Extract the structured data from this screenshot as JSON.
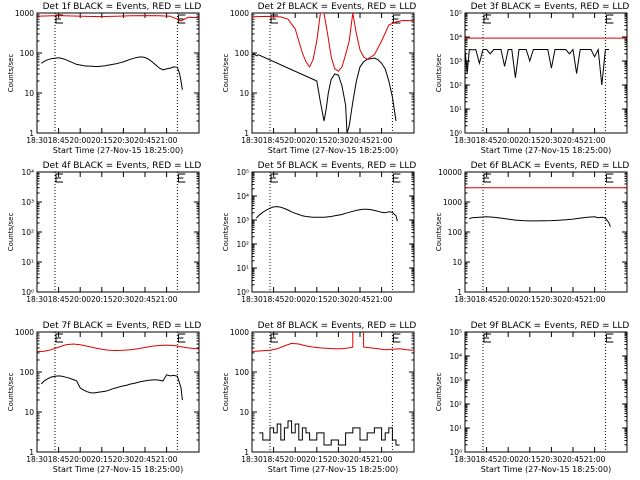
{
  "colors": {
    "events": "#000000",
    "lld": "#e00000",
    "background": "#ffffff"
  },
  "chart_data": [
    {
      "type": "line",
      "title": "Det 1f BLACK = Events, RED = LLD",
      "ylabel": "Counts/sec",
      "xlabel": "Start Time (27-Nov-15 18:25:00)",
      "ylog": true,
      "ylim": [
        1,
        1000
      ],
      "yticks": [
        "1",
        "10",
        "100",
        "1000"
      ],
      "xticks": [
        "18:30",
        "18:45",
        "20:00",
        "20:15",
        "20:30",
        "20:45",
        "21:00"
      ],
      "markers": [
        "18:45",
        "20:45"
      ],
      "series": [
        {
          "color": "#000000",
          "x": [
            0.06,
            0.1,
            0.15,
            0.2,
            0.25,
            0.3,
            0.35,
            0.4,
            0.45,
            0.5,
            0.55,
            0.6,
            0.65,
            0.7,
            0.75,
            0.8,
            0.85,
            0.9,
            0.95,
            1.0,
            1.05,
            1.1,
            1.15,
            1.2,
            1.25,
            1.3,
            1.35,
            1.4,
            1.45,
            1.5,
            1.55,
            1.6,
            1.65,
            1.7,
            1.75,
            1.8,
            1.85,
            1.9,
            1.95,
            1.98,
            2.0,
            2.02
          ],
          "y": [
            55,
            62,
            68,
            72,
            74,
            76,
            73,
            68,
            62,
            57,
            52,
            50,
            48,
            47,
            47,
            46,
            46,
            47,
            48,
            50,
            52,
            54,
            57,
            60,
            65,
            70,
            74,
            78,
            80,
            77,
            70,
            60,
            50,
            42,
            38,
            40,
            42,
            45,
            44,
            30,
            20,
            12
          ]
        },
        {
          "color": "#e00000",
          "x": [
            -0.05,
            0.1,
            0.3,
            0.5,
            0.7,
            0.9,
            1.0,
            1.1,
            1.3,
            1.5,
            1.7,
            1.85,
            1.95,
            2.0,
            2.05,
            2.1,
            2.3,
            2.5
          ],
          "y": [
            820,
            840,
            860,
            840,
            820,
            815,
            820,
            830,
            850,
            860,
            850,
            830,
            700,
            630,
            700,
            780,
            760,
            770
          ]
        }
      ]
    },
    {
      "type": "line",
      "title": "Det 2f BLACK = Events, RED = LLD",
      "ylabel": "Counts/sec",
      "xlabel": "Start Time (27-Nov-15 18:25:00)",
      "ylog": true,
      "ylim": [
        1,
        1000
      ],
      "yticks": [
        "1",
        "10",
        "100",
        "1000"
      ],
      "xticks": [
        "18:30",
        "18:45",
        "20:00",
        "20:15",
        "20:30",
        "20:45",
        "21:00"
      ],
      "markers": [
        "18:45",
        "20:45"
      ],
      "series": [
        {
          "color": "#000000",
          "x": [
            0.0,
            0.03,
            0.06,
            0.09,
            0.9,
            0.95,
            1.0,
            1.03,
            1.06,
            1.1,
            1.15,
            1.2,
            1.25,
            1.3,
            1.32,
            1.35,
            1.4,
            1.45,
            1.5,
            1.55,
            1.6,
            1.65,
            1.7,
            1.75,
            1.8,
            1.85,
            1.9,
            1.95,
            2.0
          ],
          "y": [
            90,
            95,
            85,
            90,
            20,
            6,
            2,
            4,
            10,
            22,
            30,
            28,
            15,
            5,
            1,
            1.5,
            6,
            20,
            45,
            60,
            70,
            72,
            75,
            68,
            55,
            40,
            20,
            8,
            2
          ]
        },
        {
          "color": "#e00000",
          "x": [
            -0.05,
            0.2,
            0.4,
            0.5,
            0.6,
            0.65,
            0.7,
            0.75,
            0.8,
            0.85,
            0.9,
            0.95,
            1.0,
            1.05,
            1.1,
            1.15,
            1.2,
            1.25,
            1.3,
            1.35,
            1.4,
            1.45,
            1.5,
            1.55,
            1.6,
            1.7,
            1.8,
            1.9,
            2.0,
            2.1,
            2.3,
            2.5
          ],
          "y": [
            800,
            820,
            800,
            700,
            400,
            200,
            100,
            60,
            45,
            70,
            200,
            1000,
            1000,
            300,
            80,
            40,
            35,
            45,
            90,
            200,
            1000,
            300,
            120,
            80,
            70,
            90,
            200,
            500,
            600,
            650,
            640,
            630
          ]
        }
      ]
    },
    {
      "type": "line",
      "title": "Det 3f BLACK = Events, RED = LLD",
      "ylabel": "Counts/sec",
      "xlabel": "Start Time (27-Nov-15 18:25:00)",
      "ylog": true,
      "ylim": [
        1,
        100000
      ],
      "yticks": [
        "10⁰",
        "10¹",
        "10²",
        "10³",
        "10⁴",
        "10⁵"
      ],
      "xticks": [
        "18:30",
        "18:45",
        "20:00",
        "20:15",
        "20:30",
        "20:45",
        "21:00"
      ],
      "markers": [
        "18:45",
        "20:45"
      ],
      "series": [
        {
          "color": "#000000",
          "x": [
            0.0,
            0.03,
            0.06,
            0.1,
            0.15,
            0.2,
            0.25,
            0.3,
            0.35,
            0.4,
            0.45,
            0.5,
            0.55,
            0.6,
            0.65,
            0.7,
            0.75,
            0.8,
            0.85,
            0.9,
            0.95,
            1.0,
            1.05,
            1.1,
            1.15,
            1.2,
            1.25,
            1.3,
            1.35,
            1.4,
            1.45,
            1.5,
            1.55,
            1.6,
            1.65,
            1.7,
            1.75,
            1.8,
            1.85,
            1.9,
            1.95,
            2.0
          ],
          "y": [
            3000,
            300,
            3000,
            2900,
            3000,
            800,
            3000,
            3000,
            2000,
            3000,
            3000,
            3000,
            600,
            3000,
            3000,
            200,
            3000,
            3000,
            3000,
            1000,
            3000,
            3000,
            3000,
            3000,
            3000,
            500,
            3000,
            3000,
            3000,
            3000,
            2000,
            3000,
            300,
            3000,
            3000,
            3000,
            3000,
            1500,
            3000,
            100,
            3000,
            3000
          ]
        },
        {
          "color": "#e00000",
          "x": [
            -0.05,
            0.5,
            1.0,
            1.5,
            2.0,
            2.5
          ],
          "y": [
            9000,
            9000,
            9000,
            9000,
            9000,
            9000
          ]
        }
      ]
    },
    {
      "type": "line",
      "title": "Det 4f BLACK = Events, RED = LLD",
      "ylabel": "Counts/sec",
      "xlabel": "",
      "ylog": true,
      "ylim": [
        1,
        10000
      ],
      "yticks": [
        "10⁰",
        "10¹",
        "10²",
        "10³",
        "10⁴"
      ],
      "xticks": [
        "18:30",
        "18:45",
        "20:00",
        "20:15",
        "20:30",
        "20:45",
        "21:00"
      ],
      "markers": [
        "18:45",
        "20:45"
      ],
      "series": []
    },
    {
      "type": "line",
      "title": "Det 5f BLACK = Events, RED = LLD",
      "ylabel": "Counts/sec",
      "xlabel": "",
      "ylog": true,
      "ylim": [
        1,
        100000
      ],
      "yticks": [
        "10⁰",
        "10¹",
        "10²",
        "10³",
        "10⁴",
        "10⁵"
      ],
      "xticks": [
        "18:30",
        "18:45",
        "20:00",
        "20:15",
        "20:30",
        "20:45",
        "21:00"
      ],
      "markers": [
        "18:45",
        "20:45"
      ],
      "series": [
        {
          "color": "#000000",
          "x": [
            0.06,
            0.1,
            0.15,
            0.2,
            0.25,
            0.3,
            0.35,
            0.4,
            0.45,
            0.5,
            0.55,
            0.6,
            0.65,
            0.7,
            0.75,
            0.8,
            0.85,
            0.9,
            0.95,
            1.0,
            1.05,
            1.1,
            1.15,
            1.2,
            1.25,
            1.3,
            1.35,
            1.4,
            1.45,
            1.5,
            1.55,
            1.6,
            1.65,
            1.7,
            1.75,
            1.8,
            1.85,
            1.9,
            1.95,
            2.0,
            2.02
          ],
          "y": [
            1200,
            1600,
            2100,
            2600,
            3100,
            3500,
            3600,
            3400,
            3000,
            2600,
            2200,
            1900,
            1700,
            1500,
            1400,
            1350,
            1300,
            1300,
            1300,
            1300,
            1350,
            1400,
            1500,
            1600,
            1700,
            1900,
            2100,
            2300,
            2500,
            2700,
            2800,
            2800,
            2700,
            2500,
            2300,
            2100,
            2000,
            2200,
            2100,
            1500,
            900
          ]
        }
      ]
    },
    {
      "type": "line",
      "title": "Det 6f BLACK = Events, RED = LLD",
      "ylabel": "Counts/sec",
      "xlabel": "",
      "ylog": true,
      "ylim": [
        1,
        10000
      ],
      "yticks": [
        "1",
        "10",
        "100",
        "1000",
        "10000"
      ],
      "xticks": [
        "18:30",
        "18:45",
        "20:00",
        "20:15",
        "20:30",
        "20:45",
        "21:00"
      ],
      "markers": [
        "18:45",
        "20:45"
      ],
      "series": [
        {
          "color": "#000000",
          "x": [
            0.06,
            0.1,
            0.2,
            0.3,
            0.4,
            0.5,
            0.6,
            0.7,
            0.8,
            0.9,
            1.0,
            1.1,
            1.2,
            1.3,
            1.4,
            1.5,
            1.6,
            1.7,
            1.8,
            1.85,
            1.9,
            1.95,
            2.0,
            2.02
          ],
          "y": [
            280,
            300,
            310,
            320,
            310,
            290,
            270,
            250,
            240,
            235,
            235,
            238,
            240,
            245,
            255,
            270,
            290,
            310,
            320,
            300,
            310,
            290,
            200,
            150
          ]
        },
        {
          "color": "#e00000",
          "x": [
            -0.05,
            0.5,
            1.0,
            1.5,
            2.0,
            2.5
          ],
          "y": [
            3000,
            3000,
            3000,
            3000,
            3000,
            3000
          ]
        }
      ]
    },
    {
      "type": "line",
      "title": "Det 7f BLACK = Events, RED = LLD",
      "ylabel": "Counts/sec",
      "xlabel": "Start Time (27-Nov-15 18:25:00)",
      "ylog": true,
      "ylim": [
        1,
        1000
      ],
      "yticks": [
        "1",
        "10",
        "100",
        "1000"
      ],
      "xticks": [
        "18:30",
        "18:45",
        "20:00",
        "20:15",
        "20:30",
        "20:45",
        "21:00"
      ],
      "markers": [
        "18:45",
        "20:45"
      ],
      "series": [
        {
          "color": "#000000",
          "x": [
            0.06,
            0.1,
            0.15,
            0.2,
            0.25,
            0.3,
            0.35,
            0.4,
            0.45,
            0.5,
            0.55,
            0.6,
            0.65,
            0.7,
            0.75,
            0.8,
            0.85,
            0.9,
            0.95,
            1.0,
            1.05,
            1.1,
            1.15,
            1.2,
            1.25,
            1.3,
            1.35,
            1.4,
            1.45,
            1.5,
            1.55,
            1.6,
            1.65,
            1.7,
            1.75,
            1.8,
            1.85,
            1.9,
            1.95,
            2.0,
            2.02
          ],
          "y": [
            50,
            60,
            68,
            75,
            78,
            80,
            78,
            74,
            70,
            65,
            60,
            40,
            35,
            32,
            30,
            30,
            31,
            32,
            33,
            35,
            38,
            40,
            43,
            45,
            47,
            50,
            52,
            55,
            58,
            60,
            62,
            63,
            64,
            62,
            60,
            85,
            80,
            82,
            78,
            40,
            20
          ]
        },
        {
          "color": "#e00000",
          "x": [
            -0.05,
            0.1,
            0.2,
            0.3,
            0.4,
            0.5,
            0.6,
            0.7,
            0.8,
            0.9,
            1.0,
            1.1,
            1.2,
            1.3,
            1.4,
            1.5,
            1.6,
            1.7,
            1.8,
            1.9,
            2.0,
            2.1,
            2.3,
            2.5
          ],
          "y": [
            320,
            330,
            360,
            420,
            480,
            500,
            480,
            440,
            400,
            370,
            350,
            345,
            350,
            360,
            380,
            410,
            440,
            460,
            470,
            460,
            430,
            400,
            370,
            340
          ]
        }
      ]
    },
    {
      "type": "line",
      "title": "Det 8f BLACK = Events, RED = LLD",
      "ylabel": "Counts/sec",
      "xlabel": "Start Time (27-Nov-15 18:25:00)",
      "ylog": true,
      "ylim": [
        1,
        1000
      ],
      "yticks": [
        "1",
        "10",
        "100",
        "1000"
      ],
      "xticks": [
        "18:30",
        "18:45",
        "20:00",
        "20:15",
        "20:30",
        "20:45",
        "21:00"
      ],
      "markers": [
        "18:45",
        "20:45"
      ],
      "series": [
        {
          "color": "#000000",
          "x": [
            0.1,
            0.15,
            0.15,
            0.25,
            0.25,
            0.3,
            0.3,
            0.35,
            0.35,
            0.4,
            0.4,
            0.45,
            0.45,
            0.5,
            0.5,
            0.55,
            0.55,
            0.6,
            0.6,
            0.65,
            0.65,
            0.7,
            0.7,
            0.75,
            0.75,
            0.8,
            0.8,
            0.9,
            0.9,
            1.0,
            1.0,
            1.1,
            1.1,
            1.2,
            1.2,
            1.3,
            1.3,
            1.4,
            1.4,
            1.5,
            1.5,
            1.6,
            1.6,
            1.7,
            1.7,
            1.8,
            1.8,
            1.85,
            1.85,
            1.9,
            1.9,
            1.95,
            1.95,
            2.0,
            2.0,
            2.05
          ],
          "y": [
            3,
            3,
            2,
            2,
            4,
            4,
            3,
            3,
            5,
            5,
            2,
            2,
            4,
            4,
            6,
            6,
            3,
            3,
            5,
            5,
            2,
            2,
            4,
            4,
            3,
            3,
            2,
            2,
            3,
            3,
            1.5,
            1.5,
            2,
            2,
            1.5,
            1.5,
            3,
            3,
            4,
            4,
            2,
            2,
            3,
            3,
            4,
            4,
            2,
            2,
            3,
            3,
            4,
            4,
            2,
            2,
            1.5,
            1.5
          ]
        },
        {
          "color": "#e00000",
          "x": [
            -0.05,
            0.05,
            0.15,
            0.25,
            0.35,
            0.45,
            0.55,
            0.65,
            0.75,
            0.85,
            0.95,
            1.05,
            1.15,
            1.25,
            1.35,
            1.4,
            1.4,
            1.55,
            1.55,
            1.65,
            1.75,
            1.85,
            1.95,
            2.05,
            2.15,
            2.3,
            2.5
          ],
          "y": [
            320,
            330,
            340,
            350,
            380,
            450,
            520,
            500,
            450,
            420,
            400,
            390,
            380,
            380,
            400,
            420,
            1100,
            1100,
            420,
            400,
            380,
            360,
            370,
            380,
            360,
            340,
            330
          ]
        }
      ]
    },
    {
      "type": "line",
      "title": "Det 9f BLACK = Events, RED = LLD",
      "ylabel": "Counts/sec",
      "xlabel": "Start Time (27-Nov-15 18:25:00)",
      "ylog": true,
      "ylim": [
        1,
        100000
      ],
      "yticks": [
        "10⁰",
        "10¹",
        "10²",
        "10³",
        "10⁴",
        "10⁵"
      ],
      "xticks": [
        "18:30",
        "18:45",
        "20:00",
        "20:15",
        "20:30",
        "20:45",
        "21:00"
      ],
      "markers": [
        "18:45",
        "20:45"
      ],
      "series": []
    }
  ]
}
